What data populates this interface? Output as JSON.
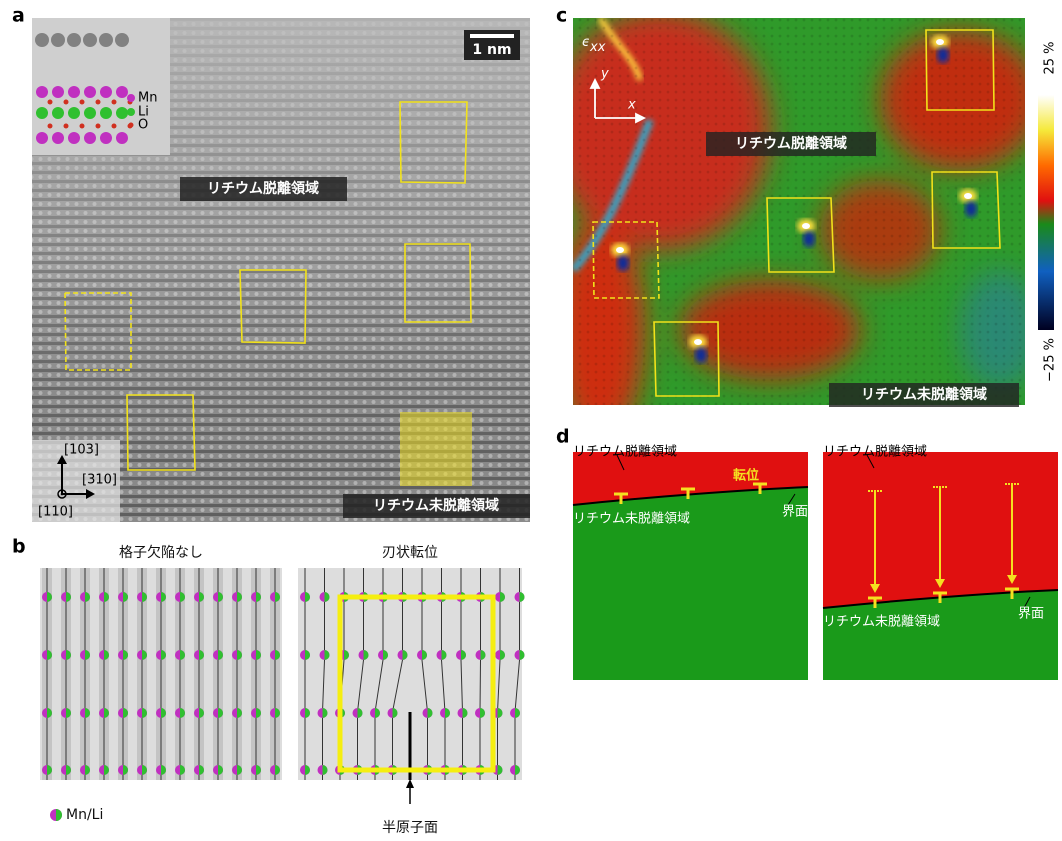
{
  "panel_a": {
    "label": "a",
    "scale_bar": "1 nm",
    "region_top": "リチウム脱離領域",
    "region_bottom": "リチウム未脱離領域",
    "inset_legend": [
      "Mn",
      "Li",
      "O"
    ],
    "axes": [
      "[103]",
      "[310]",
      "[110]"
    ]
  },
  "panel_b": {
    "label": "b",
    "left_title": "格子欠陥なし",
    "right_title": "刃状転位",
    "legend": "Mn/Li",
    "half_plane": "半原子面"
  },
  "panel_c": {
    "label": "c",
    "symbol": "ϵ",
    "symbol_sub": "xx",
    "axis_y": "y",
    "axis_x": "x",
    "region_top": "リチウム脱離領域",
    "region_bottom": "リチウム未脱離領域",
    "colorbar_max": "25 %",
    "colorbar_min": "−25 %"
  },
  "panel_d": {
    "label": "d",
    "left": {
      "region_top": "リチウム脱離領域",
      "dislocation": "転位",
      "region_bottom": "リチウム未脱離領域",
      "interface": "界面"
    },
    "right": {
      "region_top": "リチウム脱離領域",
      "region_bottom": "リチウム未脱離領域",
      "interface": "界面"
    }
  }
}
